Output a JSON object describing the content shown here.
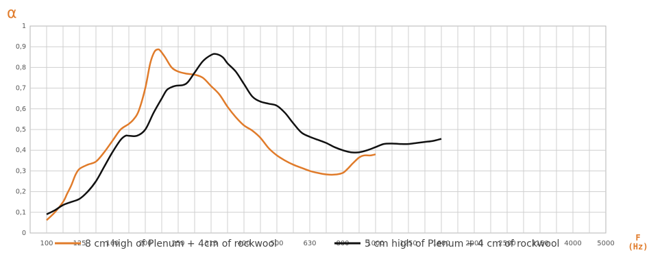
{
  "chart_data": {
    "type": "line",
    "ylabel": "α",
    "xlabel_line1": "F",
    "xlabel_line2": "(Hz)",
    "ylim": [
      0,
      1
    ],
    "y_ticks": [
      "0",
      "0,1",
      "0,2",
      "0,3",
      "0,4",
      "0,5",
      "0,6",
      "0,7",
      "0,8",
      "0,9",
      "1"
    ],
    "categories": [
      "100",
      "125",
      "160",
      "200",
      "250",
      "315",
      "400",
      "500",
      "630",
      "800",
      "1000",
      "1250",
      "1600",
      "2000",
      "2500",
      "3150",
      "4000",
      "5000"
    ],
    "grid": true,
    "legend_position": "bottom",
    "series": [
      {
        "name": "8 cm high of Plenum + 4cm of rockwool",
        "color": "#e07b2a",
        "values": [
          [
            0,
            0.062
          ],
          [
            0.5,
            0.1
          ],
          [
            1,
            0.15
          ],
          [
            1.25,
            0.19
          ],
          [
            1.5,
            0.23
          ],
          [
            1.75,
            0.28
          ],
          [
            2,
            0.31
          ],
          [
            2.5,
            0.33
          ],
          [
            3,
            0.345
          ],
          [
            3.5,
            0.39
          ],
          [
            4,
            0.445
          ],
          [
            4.5,
            0.5
          ],
          [
            5,
            0.527
          ],
          [
            5.3,
            0.55
          ],
          [
            5.6,
            0.59
          ],
          [
            6,
            0.7
          ],
          [
            6.3,
            0.82
          ],
          [
            6.55,
            0.875
          ],
          [
            6.75,
            0.887
          ],
          [
            6.9,
            0.882
          ],
          [
            7.2,
            0.85
          ],
          [
            7.6,
            0.8
          ],
          [
            8,
            0.78
          ],
          [
            8.5,
            0.77
          ],
          [
            9,
            0.765
          ],
          [
            9.5,
            0.75
          ],
          [
            10,
            0.71
          ],
          [
            10.5,
            0.67
          ],
          [
            11,
            0.61
          ],
          [
            11.5,
            0.56
          ],
          [
            12,
            0.52
          ],
          [
            12.5,
            0.495
          ],
          [
            13,
            0.46
          ],
          [
            13.5,
            0.41
          ],
          [
            14,
            0.375
          ],
          [
            14.5,
            0.35
          ],
          [
            15,
            0.33
          ],
          [
            15.5,
            0.315
          ],
          [
            16,
            0.3
          ],
          [
            16.5,
            0.29
          ],
          [
            17,
            0.283
          ],
          [
            17.5,
            0.282
          ],
          [
            18,
            0.29
          ],
          [
            18.3,
            0.31
          ],
          [
            18.6,
            0.335
          ],
          [
            19,
            0.365
          ],
          [
            19.3,
            0.375
          ],
          [
            19.7,
            0.375
          ],
          [
            20,
            0.38
          ]
        ]
      },
      {
        "name": "5 cm high of Plenum + 4 cm of rockwool",
        "color": "#111111",
        "values": [
          [
            0,
            0.09
          ],
          [
            0.5,
            0.11
          ],
          [
            1,
            0.135
          ],
          [
            1.5,
            0.15
          ],
          [
            2,
            0.165
          ],
          [
            2.5,
            0.2
          ],
          [
            3,
            0.25
          ],
          [
            3.5,
            0.32
          ],
          [
            4,
            0.39
          ],
          [
            4.5,
            0.45
          ],
          [
            4.8,
            0.47
          ],
          [
            5,
            0.47
          ],
          [
            5.5,
            0.47
          ],
          [
            6,
            0.5
          ],
          [
            6.5,
            0.58
          ],
          [
            7,
            0.65
          ],
          [
            7.3,
            0.69
          ],
          [
            7.6,
            0.705
          ],
          [
            7.9,
            0.712
          ],
          [
            8.3,
            0.715
          ],
          [
            8.6,
            0.73
          ],
          [
            9,
            0.775
          ],
          [
            9.5,
            0.83
          ],
          [
            10,
            0.86
          ],
          [
            10.3,
            0.865
          ],
          [
            10.7,
            0.85
          ],
          [
            11,
            0.82
          ],
          [
            11.5,
            0.78
          ],
          [
            12,
            0.72
          ],
          [
            12.5,
            0.66
          ],
          [
            13,
            0.635
          ],
          [
            13.5,
            0.625
          ],
          [
            14,
            0.615
          ],
          [
            14.5,
            0.58
          ],
          [
            15,
            0.53
          ],
          [
            15.5,
            0.485
          ],
          [
            16,
            0.465
          ],
          [
            16.5,
            0.45
          ],
          [
            17,
            0.435
          ],
          [
            17.5,
            0.415
          ],
          [
            18,
            0.4
          ],
          [
            18.5,
            0.39
          ],
          [
            19,
            0.39
          ],
          [
            19.5,
            0.4
          ],
          [
            20,
            0.415
          ],
          [
            20.5,
            0.43
          ],
          [
            21,
            0.432
          ],
          [
            21.5,
            0.43
          ],
          [
            22,
            0.43
          ],
          [
            22.5,
            0.435
          ],
          [
            23,
            0.44
          ],
          [
            23.5,
            0.445
          ],
          [
            24,
            0.455
          ]
        ]
      }
    ]
  }
}
